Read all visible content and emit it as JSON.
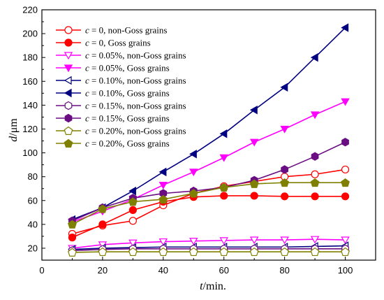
{
  "chart_data": {
    "type": "line",
    "xlabel": {
      "var": "t",
      "unit": "/min."
    },
    "ylabel": {
      "var": "d",
      "unit": "/μm"
    },
    "xlim": [
      0,
      110
    ],
    "ylim": [
      10,
      220
    ],
    "xticks": [
      0,
      20,
      40,
      60,
      80,
      100
    ],
    "yticks": [
      20,
      40,
      60,
      80,
      100,
      120,
      140,
      160,
      180,
      200,
      220
    ],
    "grid": false,
    "legend_position": "top-left",
    "x": [
      10,
      20,
      30,
      40,
      50,
      60,
      70,
      80,
      90,
      100
    ],
    "series": [
      {
        "legend_var": "c",
        "legend_value": " = 0,",
        "legend_desc": "non-Goss grains",
        "color": "#ff0000",
        "marker": "circle",
        "filled": false,
        "values": [
          32,
          39,
          43,
          56,
          66,
          72,
          76,
          80,
          82,
          86
        ]
      },
      {
        "legend_var": "c",
        "legend_value": " = 0,",
        "legend_desc": "Goss grains",
        "color": "#ff0000",
        "marker": "circle",
        "filled": true,
        "values": [
          29,
          40,
          52,
          59,
          63,
          64,
          64,
          63.5,
          63.5,
          63.5
        ]
      },
      {
        "legend_var": "c",
        "legend_value": " = 0.05%,",
        "legend_desc": "non-Goss grains",
        "color": "#ff00ff",
        "marker": "triangle-down",
        "filled": false,
        "values": [
          20,
          23,
          24.5,
          25.5,
          26,
          26.5,
          27,
          27,
          27.5,
          27
        ]
      },
      {
        "legend_var": "c",
        "legend_value": " = 0.05%,",
        "legend_desc": "Goss grains",
        "color": "#ff00ff",
        "marker": "triangle-down",
        "filled": true,
        "values": [
          42,
          51,
          61,
          73,
          84,
          96,
          109,
          120,
          132,
          143
        ]
      },
      {
        "legend_var": "c",
        "legend_value": " = 0.10%,",
        "legend_desc": "non-Goss grains",
        "color": "#000080",
        "marker": "triangle-left",
        "filled": false,
        "values": [
          19,
          20,
          20.5,
          21,
          21,
          21,
          21,
          21,
          21.5,
          22
        ]
      },
      {
        "legend_var": "c",
        "legend_value": " = 0.10%,",
        "legend_desc": "Goss grains",
        "color": "#000080",
        "marker": "triangle-left",
        "filled": true,
        "values": [
          44,
          54,
          68,
          84,
          99,
          116,
          136,
          155,
          180,
          205
        ]
      },
      {
        "legend_var": "c",
        "legend_value": " = 0.15%,",
        "legend_desc": "non-Goss grains",
        "color": "#6a0d83",
        "marker": "hexagon",
        "filled": false,
        "values": [
          18,
          19,
          19.5,
          19.5,
          19.5,
          19.5,
          19.5,
          19.5,
          19.5,
          19.5
        ]
      },
      {
        "legend_var": "c",
        "legend_value": " = 0.15%,",
        "legend_desc": "Goss grains",
        "color": "#6a0d83",
        "marker": "hexagon",
        "filled": true,
        "values": [
          43,
          54,
          62,
          66,
          68,
          71,
          77,
          86,
          97,
          109
        ]
      },
      {
        "legend_var": "c",
        "legend_value": " = 0.20%,",
        "legend_desc": "non-Goss grains",
        "color": "#808000",
        "marker": "pentagon",
        "filled": false,
        "values": [
          16.5,
          17,
          17,
          17,
          17,
          17,
          17,
          17,
          17,
          17
        ]
      },
      {
        "legend_var": "c",
        "legend_value": " = 0.20%,",
        "legend_desc": "Goss grains",
        "color": "#808000",
        "marker": "pentagon",
        "filled": true,
        "values": [
          40,
          53,
          59,
          61,
          66,
          71,
          74,
          75,
          75,
          75
        ]
      }
    ]
  }
}
